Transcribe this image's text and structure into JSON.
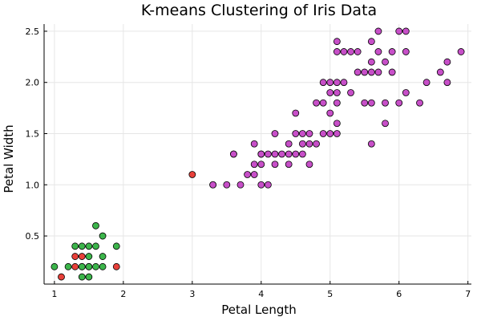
{
  "chart_data": {
    "type": "scatter",
    "title": "K-means Clustering of Iris Data",
    "xlabel": "Petal Length",
    "ylabel": "Petal Width",
    "xlim": [
      0.85,
      7.05
    ],
    "ylim": [
      0.03,
      2.57
    ],
    "xticks": [
      1,
      2,
      3,
      4,
      5,
      6,
      7
    ],
    "yticks": [
      0.5,
      1.0,
      1.5,
      2.0,
      2.5
    ],
    "xtick_labels": [
      "1",
      "2",
      "3",
      "4",
      "5",
      "6",
      "7"
    ],
    "ytick_labels": [
      "0.5",
      "1.0",
      "1.5",
      "2.0",
      "2.5"
    ],
    "grid": true,
    "legend": "none",
    "series": [
      {
        "color": "#e8403a",
        "points": [
          [
            1.1,
            0.1
          ],
          [
            1.3,
            0.2
          ],
          [
            1.3,
            0.3
          ],
          [
            1.4,
            0.3
          ],
          [
            1.4,
            0.2
          ],
          [
            1.5,
            0.2
          ],
          [
            1.9,
            0.2
          ],
          [
            3.0,
            1.1
          ],
          [
            3.3,
            1.0
          ]
        ]
      },
      {
        "color": "#3cb54b",
        "points": [
          [
            1.0,
            0.2
          ],
          [
            1.2,
            0.2
          ],
          [
            1.3,
            0.4
          ],
          [
            1.4,
            0.1
          ],
          [
            1.4,
            0.2
          ],
          [
            1.4,
            0.4
          ],
          [
            1.5,
            0.1
          ],
          [
            1.5,
            0.2
          ],
          [
            1.5,
            0.4
          ],
          [
            1.6,
            0.2
          ],
          [
            1.6,
            0.4
          ],
          [
            1.6,
            0.6
          ],
          [
            1.7,
            0.2
          ],
          [
            1.7,
            0.3
          ],
          [
            1.7,
            0.5
          ],
          [
            1.9,
            0.4
          ],
          [
            1.5,
            0.3
          ]
        ]
      },
      {
        "color": "#c74fc8",
        "points": [
          [
            3.3,
            1.0
          ],
          [
            3.5,
            1.0
          ],
          [
            3.6,
            1.3
          ],
          [
            3.7,
            1.0
          ],
          [
            3.8,
            1.1
          ],
          [
            3.9,
            1.1
          ],
          [
            3.9,
            1.2
          ],
          [
            3.9,
            1.4
          ],
          [
            4.0,
            1.0
          ],
          [
            4.0,
            1.2
          ],
          [
            4.0,
            1.3
          ],
          [
            4.1,
            1.0
          ],
          [
            4.1,
            1.3
          ],
          [
            4.2,
            1.2
          ],
          [
            4.2,
            1.3
          ],
          [
            4.2,
            1.5
          ],
          [
            4.3,
            1.3
          ],
          [
            4.4,
            1.2
          ],
          [
            4.4,
            1.3
          ],
          [
            4.4,
            1.4
          ],
          [
            4.5,
            1.3
          ],
          [
            4.5,
            1.5
          ],
          [
            4.5,
            1.7
          ],
          [
            4.6,
            1.3
          ],
          [
            4.6,
            1.4
          ],
          [
            4.6,
            1.5
          ],
          [
            4.7,
            1.2
          ],
          [
            4.7,
            1.4
          ],
          [
            4.7,
            1.5
          ],
          [
            4.8,
            1.4
          ],
          [
            4.8,
            1.8
          ],
          [
            4.9,
            1.5
          ],
          [
            4.9,
            1.8
          ],
          [
            4.9,
            2.0
          ],
          [
            5.0,
            1.5
          ],
          [
            5.0,
            1.7
          ],
          [
            5.0,
            1.9
          ],
          [
            5.0,
            2.0
          ],
          [
            5.1,
            1.5
          ],
          [
            5.1,
            1.6
          ],
          [
            5.1,
            1.8
          ],
          [
            5.1,
            1.9
          ],
          [
            5.1,
            2.0
          ],
          [
            5.1,
            2.3
          ],
          [
            5.1,
            2.4
          ],
          [
            5.2,
            2.0
          ],
          [
            5.2,
            2.3
          ],
          [
            5.3,
            1.9
          ],
          [
            5.3,
            2.3
          ],
          [
            5.4,
            2.1
          ],
          [
            5.4,
            2.3
          ],
          [
            5.5,
            1.8
          ],
          [
            5.5,
            2.1
          ],
          [
            5.6,
            1.4
          ],
          [
            5.6,
            1.8
          ],
          [
            5.6,
            2.1
          ],
          [
            5.6,
            2.2
          ],
          [
            5.6,
            2.4
          ],
          [
            5.7,
            2.1
          ],
          [
            5.7,
            2.3
          ],
          [
            5.7,
            2.5
          ],
          [
            5.8,
            1.6
          ],
          [
            5.8,
            1.8
          ],
          [
            5.8,
            2.2
          ],
          [
            5.9,
            2.1
          ],
          [
            5.9,
            2.3
          ],
          [
            6.0,
            1.8
          ],
          [
            6.0,
            2.5
          ],
          [
            6.1,
            1.9
          ],
          [
            6.1,
            2.3
          ],
          [
            6.1,
            2.5
          ],
          [
            6.3,
            1.8
          ],
          [
            6.4,
            2.0
          ],
          [
            6.6,
            2.1
          ],
          [
            6.7,
            2.0
          ],
          [
            6.7,
            2.2
          ],
          [
            6.9,
            2.3
          ],
          [
            4.0,
            1.3
          ],
          [
            3.6,
            1.3
          ]
        ]
      }
    ]
  }
}
